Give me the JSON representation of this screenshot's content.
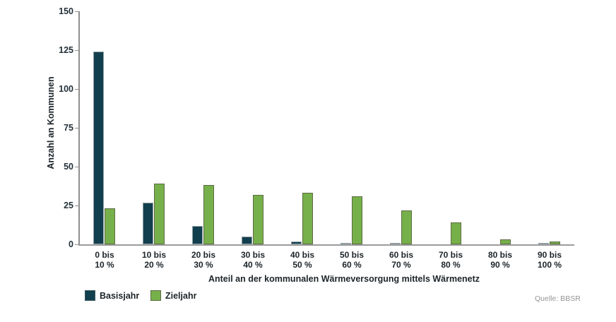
{
  "chart_data": {
    "type": "bar",
    "title": "",
    "categories": [
      {
        "top": "0 bis",
        "bottom": "10 %"
      },
      {
        "top": "10 bis",
        "bottom": "20 %"
      },
      {
        "top": "20 bis",
        "bottom": "30 %"
      },
      {
        "top": "30 bis",
        "bottom": "40 %"
      },
      {
        "top": "40 bis",
        "bottom": "50 %"
      },
      {
        "top": "50 bis",
        "bottom": "60 %"
      },
      {
        "top": "60 bis",
        "bottom": "70 %"
      },
      {
        "top": "70 bis",
        "bottom": "80 %"
      },
      {
        "top": "80 bis",
        "bottom": "90 %"
      },
      {
        "top": "90 bis",
        "bottom": "100 %"
      }
    ],
    "series": [
      {
        "name": "Basisjahr",
        "color": "#113f4e",
        "values": [
          124,
          27,
          12,
          5,
          2,
          1,
          1,
          0,
          0,
          1
        ]
      },
      {
        "name": "Zieljahr",
        "color": "#76b04a",
        "values": [
          23,
          39,
          38,
          32,
          33,
          31,
          22,
          14,
          3,
          2
        ]
      }
    ],
    "xlabel": "Anteil an der kommunalen Wärmeversorgung mittels Wärmenetz",
    "ylabel": "Anzahl an Kommunen",
    "ylim": [
      0,
      150
    ],
    "yticks": [
      0,
      25,
      50,
      75,
      100,
      125,
      150
    ],
    "grid": false,
    "legend_position": "bottom-left",
    "axis_color": "#8f8f8f",
    "text_color": "#1c2429",
    "source": "Quelle: BBSR"
  }
}
